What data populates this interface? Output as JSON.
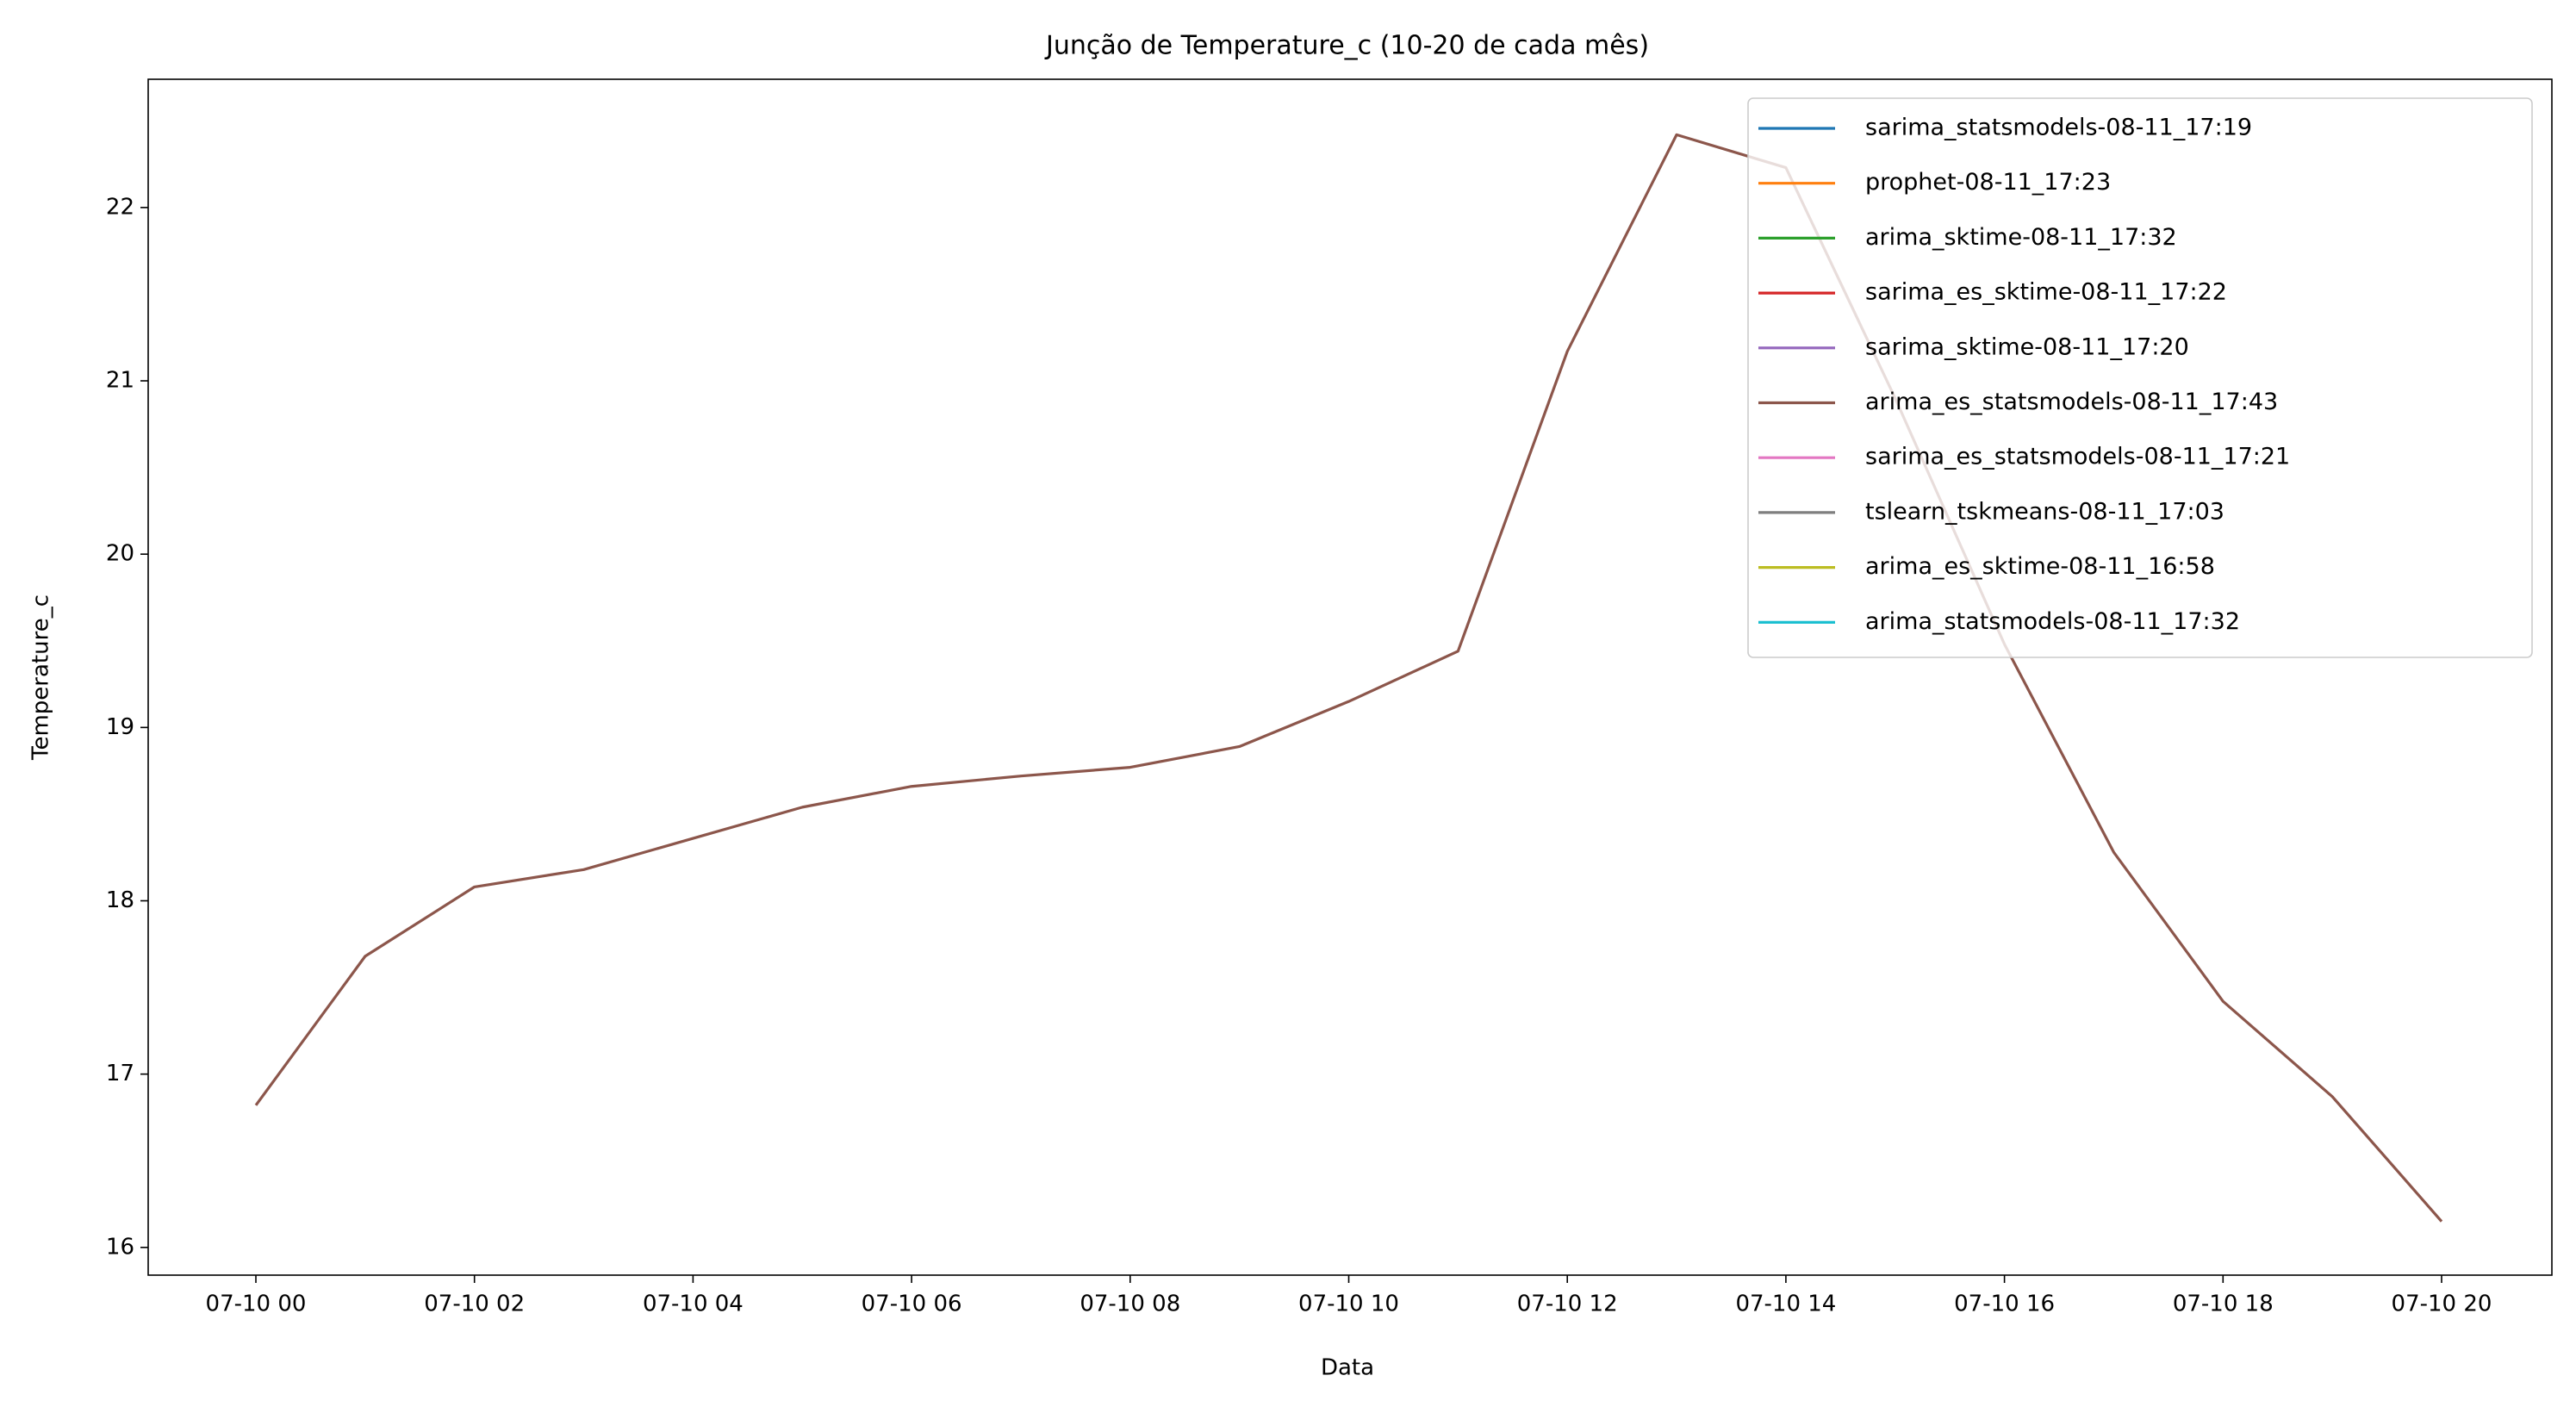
{
  "chart_data": {
    "type": "line",
    "title": "Junção de Temperature_c (10-20 de cada mês)",
    "x_label": "Data",
    "y_label": "Temperature_c",
    "x": [
      "07-10 00",
      "07-10 01",
      "07-10 02",
      "07-10 03",
      "07-10 04",
      "07-10 05",
      "07-10 06",
      "07-10 07",
      "07-10 08",
      "07-10 09",
      "07-10 10",
      "07-10 11",
      "07-10 12",
      "07-10 13",
      "07-10 14",
      "07-10 15",
      "07-10 16",
      "07-10 17",
      "07-10 18",
      "07-10 19",
      "07-10 20"
    ],
    "xticks": [
      "07-10 00",
      "07-10 02",
      "07-10 04",
      "07-10 06",
      "07-10 08",
      "07-10 10",
      "07-10 12",
      "07-10 14",
      "07-10 16",
      "07-10 18",
      "07-10 20"
    ],
    "ylim": [
      15.84,
      22.74
    ],
    "yticks": [
      16,
      17,
      18,
      19,
      20,
      21,
      22
    ],
    "grid": false,
    "legend": "upper right",
    "series": [
      {
        "name": "sarima_statsmodels-08-11_17:19",
        "color": "#1f77b4",
        "values": [
          null,
          null,
          null,
          null,
          null,
          null,
          null,
          null,
          null,
          null,
          null,
          null,
          null,
          null,
          null,
          null,
          null,
          null,
          null,
          null,
          null
        ]
      },
      {
        "name": "prophet-08-11_17:23",
        "color": "#ff7f0e",
        "values": [
          null,
          null,
          null,
          null,
          null,
          null,
          null,
          null,
          null,
          null,
          null,
          null,
          null,
          null,
          null,
          null,
          null,
          null,
          null,
          null,
          null
        ]
      },
      {
        "name": "arima_sktime-08-11_17:32",
        "color": "#2ca02c",
        "values": [
          null,
          null,
          null,
          null,
          null,
          null,
          null,
          null,
          null,
          null,
          null,
          null,
          null,
          null,
          null,
          null,
          null,
          null,
          null,
          null,
          null
        ]
      },
      {
        "name": "sarima_es_sktime-08-11_17:22",
        "color": "#d62728",
        "values": [
          null,
          null,
          null,
          null,
          null,
          null,
          null,
          null,
          null,
          null,
          null,
          null,
          null,
          null,
          null,
          null,
          null,
          null,
          null,
          null,
          null
        ]
      },
      {
        "name": "sarima_sktime-08-11_17:20",
        "color": "#9467bd",
        "values": [
          null,
          null,
          null,
          null,
          null,
          null,
          null,
          null,
          null,
          null,
          null,
          null,
          null,
          null,
          null,
          null,
          null,
          null,
          null,
          null,
          null
        ]
      },
      {
        "name": "arima_es_statsmodels-08-11_17:43",
        "color": "#8c564b",
        "values": [
          16.82,
          17.68,
          18.08,
          18.18,
          18.36,
          18.54,
          18.66,
          18.72,
          18.77,
          18.89,
          19.15,
          19.44,
          21.17,
          22.42,
          22.23,
          20.9,
          19.48,
          18.28,
          17.42,
          16.87,
          16.15
        ]
      },
      {
        "name": "sarima_es_statsmodels-08-11_17:21",
        "color": "#e377c2",
        "values": [
          null,
          null,
          null,
          null,
          null,
          null,
          null,
          null,
          null,
          null,
          null,
          null,
          null,
          null,
          null,
          null,
          null,
          null,
          null,
          null,
          null
        ]
      },
      {
        "name": "tslearn_tskmeans-08-11_17:03",
        "color": "#7f7f7f",
        "values": [
          null,
          null,
          null,
          null,
          null,
          null,
          null,
          null,
          null,
          null,
          null,
          null,
          null,
          null,
          null,
          null,
          null,
          null,
          null,
          null,
          null
        ]
      },
      {
        "name": "arima_es_sktime-08-11_16:58",
        "color": "#bcbd22",
        "values": [
          null,
          null,
          null,
          null,
          null,
          null,
          null,
          null,
          null,
          null,
          null,
          null,
          null,
          null,
          null,
          null,
          null,
          null,
          null,
          null,
          null
        ]
      },
      {
        "name": "arima_statsmodels-08-11_17:32",
        "color": "#17becf",
        "values": [
          null,
          null,
          null,
          null,
          null,
          null,
          null,
          null,
          null,
          null,
          null,
          null,
          null,
          null,
          null,
          null,
          null,
          null,
          null,
          null,
          null
        ]
      }
    ]
  }
}
